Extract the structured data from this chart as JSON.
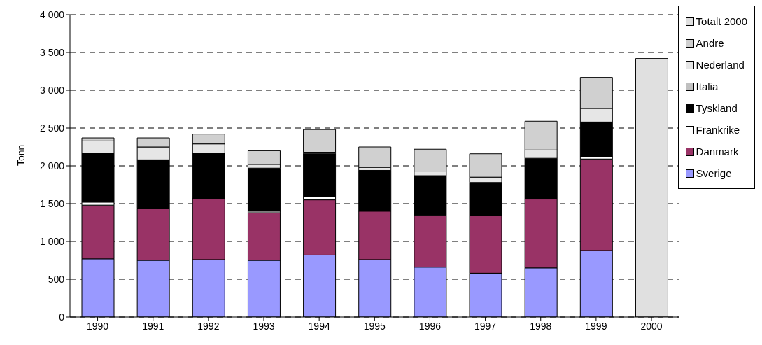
{
  "chart_data": {
    "type": "bar",
    "stacked": true,
    "ylabel": "Tonn",
    "categories": [
      "1990",
      "1991",
      "1992",
      "1993",
      "1994",
      "1995",
      "1996",
      "1997",
      "1998",
      "1999",
      "2000"
    ],
    "series": [
      {
        "name": "Sverige",
        "color": "#9999ff",
        "values": [
          770,
          750,
          760,
          750,
          820,
          760,
          660,
          580,
          650,
          880,
          null
        ]
      },
      {
        "name": "Danmark",
        "color": "#993366",
        "values": [
          710,
          690,
          810,
          630,
          730,
          640,
          690,
          760,
          910,
          1210,
          null
        ]
      },
      {
        "name": "Frankrike",
        "color": "#ffffff",
        "values": [
          40,
          null,
          null,
          20,
          40,
          null,
          null,
          null,
          null,
          30,
          null
        ]
      },
      {
        "name": "Tyskland",
        "color": "#000000",
        "values": [
          650,
          640,
          600,
          570,
          570,
          540,
          520,
          440,
          540,
          460,
          null
        ]
      },
      {
        "name": "Italia",
        "color": "#c0c0c0",
        "values": [
          null,
          null,
          null,
          null,
          null,
          null,
          null,
          null,
          null,
          null,
          null
        ]
      },
      {
        "name": "Nederland",
        "color": "#e6e6e6",
        "values": [
          160,
          170,
          120,
          50,
          20,
          40,
          60,
          70,
          110,
          180,
          null
        ]
      },
      {
        "name": "Andre",
        "color": "#d0d0d0",
        "values": [
          40,
          120,
          130,
          180,
          300,
          270,
          290,
          310,
          380,
          410,
          null
        ]
      },
      {
        "name": "Totalt 2000",
        "color": "#e0e0e0",
        "values": [
          null,
          null,
          null,
          null,
          null,
          null,
          null,
          null,
          null,
          null,
          3420
        ]
      }
    ],
    "ylim": [
      0,
      4000
    ],
    "yticks": [
      0,
      {
        "value": 500,
        "label": "500"
      },
      {
        "value": 1000,
        "label": "1 000"
      },
      {
        "value": 1500,
        "label": "1 500"
      },
      {
        "value": 2000,
        "label": "2 000"
      },
      {
        "value": 2500,
        "label": "2 500"
      },
      {
        "value": 3000,
        "label": "3 000"
      },
      {
        "value": 3500,
        "label": "3 500"
      },
      {
        "value": 4000,
        "label": "4 000"
      }
    ],
    "grid": "y",
    "legend": "right"
  }
}
